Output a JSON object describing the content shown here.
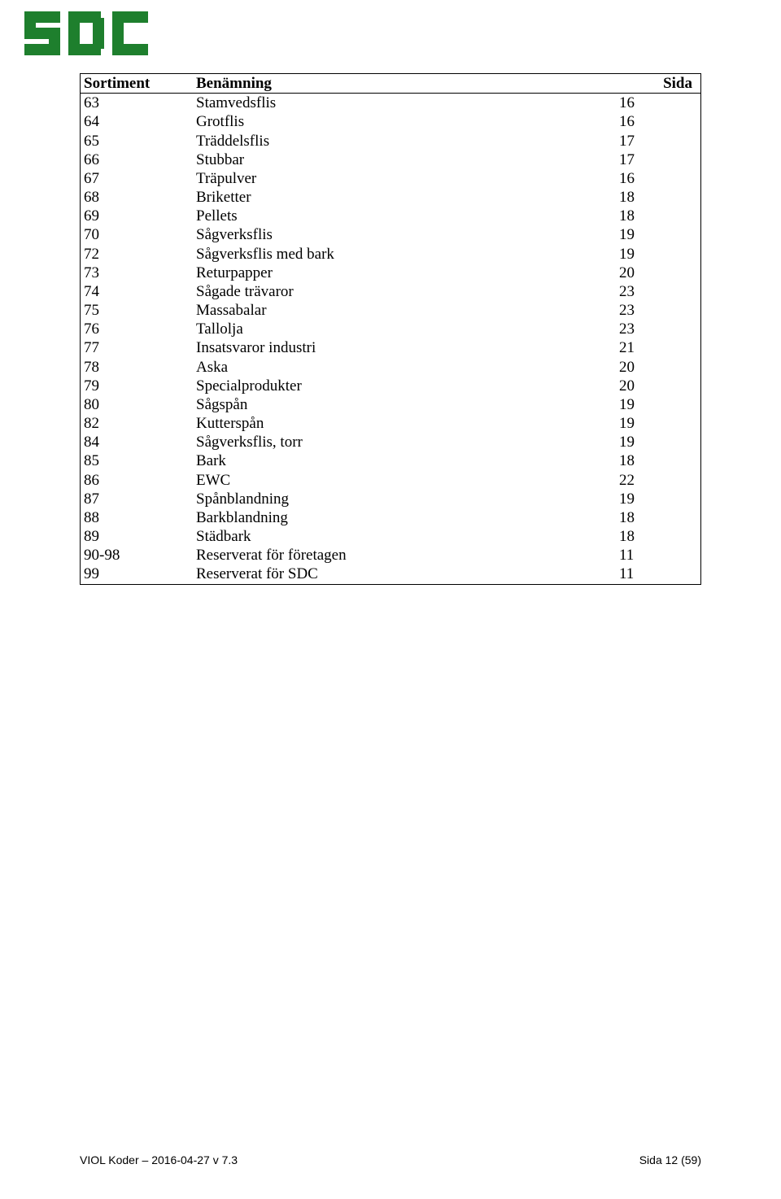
{
  "logo": {
    "text": "SDC",
    "color": "#1e7f2d"
  },
  "table": {
    "headers": {
      "code": "Sortiment",
      "name": "Benämning",
      "page": "Sida"
    },
    "rows": [
      {
        "code": "63",
        "name": "Stamvedsflis",
        "page": "16"
      },
      {
        "code": "64",
        "name": "Grotflis",
        "page": "16"
      },
      {
        "code": "65",
        "name": "Träddelsflis",
        "page": "17"
      },
      {
        "code": "66",
        "name": "Stubbar",
        "page": "17"
      },
      {
        "code": "67",
        "name": "Träpulver",
        "page": "16"
      },
      {
        "code": "68",
        "name": "Briketter",
        "page": "18"
      },
      {
        "code": "69",
        "name": "Pellets",
        "page": "18"
      },
      {
        "code": "70",
        "name": "Sågverksflis",
        "page": "19"
      },
      {
        "code": "72",
        "name": "Sågverksflis med bark",
        "page": "19"
      },
      {
        "code": "73",
        "name": "Returpapper",
        "page": "20"
      },
      {
        "code": "74",
        "name": "Sågade trävaror",
        "page": "23"
      },
      {
        "code": "75",
        "name": "Massabalar",
        "page": "23"
      },
      {
        "code": "76",
        "name": "Tallolja",
        "page": "23"
      },
      {
        "code": "77",
        "name": "Insatsvaror industri",
        "page": "21"
      },
      {
        "code": "78",
        "name": "Aska",
        "page": "20"
      },
      {
        "code": "79",
        "name": "Specialprodukter",
        "page": "20"
      },
      {
        "code": "80",
        "name": "Sågspån",
        "page": "19"
      },
      {
        "code": "82",
        "name": "Kutterspån",
        "page": "19"
      },
      {
        "code": "84",
        "name": "Sågverksflis, torr",
        "page": "19"
      },
      {
        "code": "85",
        "name": "Bark",
        "page": "18"
      },
      {
        "code": "86",
        "name": "EWC",
        "page": "22"
      },
      {
        "code": "87",
        "name": "Spånblandning",
        "page": "19"
      },
      {
        "code": "88",
        "name": "Barkblandning",
        "page": "18"
      },
      {
        "code": "89",
        "name": "Städbark",
        "page": "18"
      },
      {
        "code": "90-98",
        "name": "Reserverat för företagen",
        "page": "11"
      },
      {
        "code": "99",
        "name": "Reserverat för SDC",
        "page": "11"
      }
    ]
  },
  "footer": {
    "left": "VIOL Koder – 2016-04-27   v 7.3",
    "right": "Sida 12 (59)"
  }
}
